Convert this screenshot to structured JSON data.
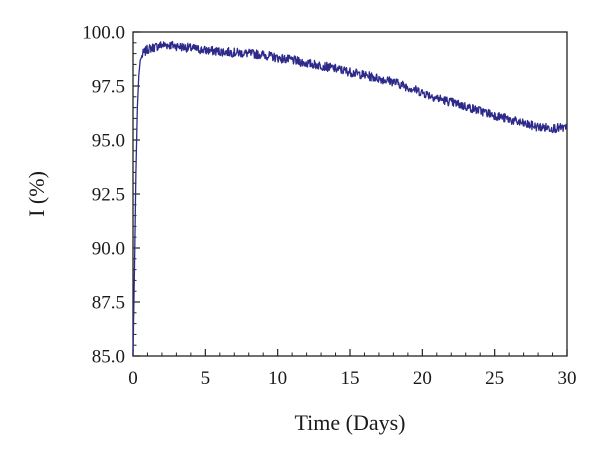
{
  "chart_data": {
    "type": "line",
    "title": "",
    "xlabel": "Time (Days)",
    "ylabel": "I (%)",
    "xlim": [
      0,
      30
    ],
    "ylim": [
      85.0,
      100.0
    ],
    "x_ticks": [
      0,
      5,
      10,
      15,
      20,
      25,
      30
    ],
    "x_tick_labels": [
      "0",
      "5",
      "10",
      "15",
      "20",
      "25",
      "30"
    ],
    "y_ticks": [
      85.0,
      87.5,
      90.0,
      92.5,
      95.0,
      97.5,
      100.0
    ],
    "y_tick_labels": [
      "85.0",
      "87.5",
      "90.0",
      "92.5",
      "95.0",
      "97.5",
      "100.0"
    ],
    "grid": false,
    "legend": "none",
    "series": [
      {
        "color": "#2e2a8a",
        "x": [
          0,
          0.1,
          0.2,
          0.3,
          0.4,
          0.5,
          0.7,
          1.0,
          1.5,
          2.0,
          2.5,
          3.0,
          4.0,
          5.0,
          6.0,
          7.0,
          8.0,
          9.0,
          10.0,
          11.0,
          12.0,
          13.0,
          14.0,
          15.0,
          16.0,
          17.0,
          18.0,
          19.0,
          20.0,
          21.0,
          22.0,
          23.0,
          24.0,
          25.0,
          26.0,
          27.0,
          28.0,
          29.0,
          30.0
        ],
        "y": [
          85.0,
          89.0,
          93.5,
          96.5,
          98.0,
          98.7,
          99.0,
          99.2,
          99.3,
          99.4,
          99.4,
          99.35,
          99.25,
          99.15,
          99.1,
          99.05,
          99.0,
          98.95,
          98.8,
          98.7,
          98.55,
          98.45,
          98.3,
          98.15,
          98.0,
          97.85,
          97.7,
          97.45,
          97.2,
          96.95,
          96.75,
          96.55,
          96.35,
          96.15,
          95.95,
          95.75,
          95.6,
          95.55,
          95.55
        ]
      }
    ]
  }
}
